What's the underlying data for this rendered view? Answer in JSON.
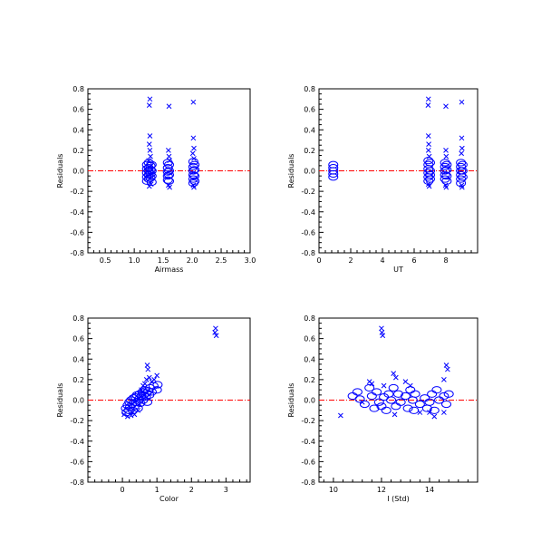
{
  "chart_data": [
    {
      "type": "scatter",
      "xlabel": "Airmass",
      "ylabel": "Residuals",
      "xlim": [
        0.2,
        3.0
      ],
      "ylim": [
        -0.8,
        0.8
      ],
      "xticks": [
        "0.5",
        "1.0",
        "1.5",
        "2.0",
        "2.5",
        "3.0"
      ],
      "xtick_values": [
        0.5,
        1.0,
        1.5,
        2.0,
        2.5,
        3.0
      ],
      "yticks": [
        "-0.8",
        "-0.6",
        "-0.4",
        "-0.2",
        "0.0",
        "0.2",
        "0.4",
        "0.6",
        "0.8"
      ],
      "ytick_values": [
        -0.8,
        -0.6,
        -0.4,
        -0.2,
        0.0,
        0.2,
        0.4,
        0.6,
        0.8
      ],
      "zero_line": {
        "y": 0,
        "color": "#ff0000",
        "style": "dash-dot"
      },
      "series": [
        {
          "marker": "circle",
          "color": "#0000ff",
          "points": [
            [
              1.22,
              0.06
            ],
            [
              1.22,
              0.02
            ],
            [
              1.22,
              -0.02
            ],
            [
              1.22,
              -0.06
            ],
            [
              1.22,
              -0.1
            ],
            [
              1.25,
              0.08
            ],
            [
              1.25,
              0.03
            ],
            [
              1.25,
              0.0
            ],
            [
              1.25,
              -0.04
            ],
            [
              1.25,
              -0.08
            ],
            [
              1.28,
              0.05
            ],
            [
              1.28,
              0.01
            ],
            [
              1.28,
              -0.03
            ],
            [
              1.28,
              -0.07
            ],
            [
              1.3,
              0.06
            ],
            [
              1.3,
              0.0
            ],
            [
              1.3,
              -0.05
            ],
            [
              1.3,
              -0.11
            ],
            [
              1.58,
              0.08
            ],
            [
              1.58,
              0.03
            ],
            [
              1.58,
              -0.01
            ],
            [
              1.58,
              -0.05
            ],
            [
              1.58,
              -0.09
            ],
            [
              1.6,
              0.06
            ],
            [
              1.6,
              0.0
            ],
            [
              1.6,
              -0.04
            ],
            [
              1.6,
              -0.1
            ],
            [
              2.02,
              0.09
            ],
            [
              2.02,
              0.04
            ],
            [
              2.02,
              0.0
            ],
            [
              2.02,
              -0.04
            ],
            [
              2.02,
              -0.08
            ],
            [
              2.02,
              -0.12
            ],
            [
              2.04,
              0.06
            ],
            [
              2.04,
              0.01
            ],
            [
              2.04,
              -0.05
            ],
            [
              2.04,
              -0.1
            ]
          ]
        },
        {
          "marker": "x",
          "color": "#0000ff",
          "points": [
            [
              1.27,
              0.7
            ],
            [
              1.26,
              0.64
            ],
            [
              1.27,
              0.34
            ],
            [
              1.26,
              0.26
            ],
            [
              1.27,
              0.2
            ],
            [
              1.28,
              0.14
            ],
            [
              1.25,
              0.1
            ],
            [
              1.29,
              -0.13
            ],
            [
              1.26,
              -0.15
            ],
            [
              1.6,
              0.63
            ],
            [
              1.59,
              0.2
            ],
            [
              1.6,
              0.14
            ],
            [
              1.61,
              0.1
            ],
            [
              1.59,
              -0.14
            ],
            [
              1.61,
              -0.16
            ],
            [
              2.02,
              0.67
            ],
            [
              2.02,
              0.32
            ],
            [
              2.03,
              0.22
            ],
            [
              2.01,
              0.17
            ],
            [
              2.03,
              0.12
            ],
            [
              2.02,
              -0.14
            ],
            [
              2.03,
              -0.16
            ]
          ]
        }
      ]
    },
    {
      "type": "scatter",
      "xlabel": "UT",
      "ylabel": "Residuals",
      "xlim": [
        0,
        10
      ],
      "ylim": [
        -0.8,
        0.8
      ],
      "xticks": [
        "0",
        "2",
        "4",
        "6",
        "8"
      ],
      "xtick_values": [
        0,
        2,
        4,
        6,
        8
      ],
      "yticks": [
        "-0.8",
        "-0.6",
        "-0.4",
        "-0.2",
        "0.0",
        "0.2",
        "0.4",
        "0.6",
        "0.8"
      ],
      "ytick_values": [
        -0.8,
        -0.6,
        -0.4,
        -0.2,
        0.0,
        0.2,
        0.4,
        0.6,
        0.8
      ],
      "zero_line": {
        "y": 0,
        "color": "#ff0000",
        "style": "dash-dot"
      },
      "series": [
        {
          "marker": "circle",
          "color": "#0000ff",
          "points": [
            [
              0.9,
              0.06
            ],
            [
              0.9,
              0.03
            ],
            [
              0.9,
              0.0
            ],
            [
              0.9,
              -0.03
            ],
            [
              0.9,
              -0.06
            ],
            [
              6.9,
              0.1
            ],
            [
              6.9,
              0.06
            ],
            [
              6.9,
              0.02
            ],
            [
              6.9,
              -0.02
            ],
            [
              6.9,
              -0.06
            ],
            [
              6.9,
              -0.1
            ],
            [
              7.0,
              0.08
            ],
            [
              7.0,
              0.0
            ],
            [
              7.0,
              -0.04
            ],
            [
              7.0,
              -0.08
            ],
            [
              7.95,
              0.08
            ],
            [
              7.95,
              0.04
            ],
            [
              7.95,
              0.0
            ],
            [
              7.95,
              -0.04
            ],
            [
              7.95,
              -0.08
            ],
            [
              8.05,
              0.06
            ],
            [
              8.05,
              0.01
            ],
            [
              8.05,
              -0.05
            ],
            [
              8.05,
              -0.1
            ],
            [
              8.95,
              0.08
            ],
            [
              8.95,
              0.04
            ],
            [
              8.95,
              0.0
            ],
            [
              8.95,
              -0.04
            ],
            [
              8.95,
              -0.08
            ],
            [
              8.95,
              -0.12
            ],
            [
              9.05,
              0.06
            ],
            [
              9.05,
              0.0
            ],
            [
              9.05,
              -0.06
            ]
          ]
        },
        {
          "marker": "x",
          "color": "#0000ff",
          "points": [
            [
              6.9,
              0.7
            ],
            [
              6.88,
              0.64
            ],
            [
              6.9,
              0.34
            ],
            [
              6.92,
              0.26
            ],
            [
              6.9,
              0.2
            ],
            [
              6.95,
              0.14
            ],
            [
              6.9,
              -0.13
            ],
            [
              6.95,
              -0.15
            ],
            [
              8.0,
              0.63
            ],
            [
              8.0,
              0.2
            ],
            [
              8.02,
              0.14
            ],
            [
              7.98,
              -0.14
            ],
            [
              8.02,
              -0.16
            ],
            [
              9.0,
              0.67
            ],
            [
              9.0,
              0.32
            ],
            [
              9.02,
              0.22
            ],
            [
              8.98,
              0.17
            ],
            [
              9.0,
              -0.14
            ],
            [
              9.02,
              -0.16
            ]
          ]
        }
      ]
    },
    {
      "type": "scatter",
      "xlabel": "Color",
      "ylabel": "Residuals",
      "xlim": [
        -1,
        3.7
      ],
      "ylim": [
        -0.8,
        0.8
      ],
      "xticks": [
        "0",
        "1",
        "2",
        "3"
      ],
      "xtick_values": [
        0,
        1,
        2,
        3
      ],
      "yticks": [
        "-0.8",
        "-0.6",
        "-0.4",
        "-0.2",
        "0.0",
        "0.2",
        "0.4",
        "0.6",
        "0.8"
      ],
      "ytick_values": [
        -0.8,
        -0.6,
        -0.4,
        -0.2,
        0.0,
        0.2,
        0.4,
        0.6,
        0.8
      ],
      "zero_line": {
        "y": 0,
        "color": "#ff0000",
        "style": "dash-dot"
      },
      "series": [
        {
          "marker": "circle",
          "color": "#0000ff",
          "points": [
            [
              0.1,
              -0.08
            ],
            [
              0.12,
              -0.12
            ],
            [
              0.15,
              -0.05
            ],
            [
              0.18,
              -0.1
            ],
            [
              0.2,
              -0.02
            ],
            [
              0.22,
              -0.07
            ],
            [
              0.25,
              0.0
            ],
            [
              0.28,
              -0.04
            ],
            [
              0.3,
              -0.1
            ],
            [
              0.32,
              0.02
            ],
            [
              0.35,
              -0.06
            ],
            [
              0.38,
              0.03
            ],
            [
              0.4,
              -0.02
            ],
            [
              0.42,
              0.05
            ],
            [
              0.45,
              -0.08
            ],
            [
              0.48,
              0.01
            ],
            [
              0.5,
              0.06
            ],
            [
              0.52,
              -0.03
            ],
            [
              0.55,
              0.04
            ],
            [
              0.58,
              0.08
            ],
            [
              0.6,
              0.0
            ],
            [
              0.62,
              0.05
            ],
            [
              0.65,
              0.1
            ],
            [
              0.68,
              0.03
            ],
            [
              0.7,
              0.07
            ],
            [
              0.72,
              -0.02
            ],
            [
              0.75,
              0.09
            ],
            [
              0.78,
              0.05
            ],
            [
              0.8,
              0.12
            ],
            [
              0.85,
              0.08
            ],
            [
              0.9,
              0.14
            ],
            [
              1.0,
              0.1
            ],
            [
              1.02,
              0.15
            ]
          ]
        },
        {
          "marker": "x",
          "color": "#0000ff",
          "points": [
            [
              0.05,
              -0.14
            ],
            [
              0.15,
              -0.16
            ],
            [
              0.25,
              -0.15
            ],
            [
              0.3,
              -0.12
            ],
            [
              0.35,
              -0.14
            ],
            [
              0.45,
              -0.1
            ],
            [
              0.5,
              -0.04
            ],
            [
              0.55,
              0.1
            ],
            [
              0.6,
              0.14
            ],
            [
              0.65,
              0.16
            ],
            [
              0.7,
              0.2
            ],
            [
              0.72,
              0.34
            ],
            [
              0.74,
              0.3
            ],
            [
              0.78,
              0.22
            ],
            [
              0.85,
              0.18
            ],
            [
              0.92,
              0.2
            ],
            [
              1.0,
              0.24
            ],
            [
              2.7,
              0.7
            ],
            [
              2.68,
              0.66
            ],
            [
              2.72,
              0.63
            ]
          ]
        }
      ]
    },
    {
      "type": "scatter",
      "xlabel": "I (Std)",
      "ylabel": "Residuals",
      "xlim": [
        9.4,
        16.0
      ],
      "ylim": [
        -0.8,
        0.8
      ],
      "xticks": [
        "10",
        "12",
        "14"
      ],
      "xtick_values": [
        10,
        12,
        14
      ],
      "yticks": [
        "-0.8",
        "-0.6",
        "-0.4",
        "-0.2",
        "0.0",
        "0.2",
        "0.4",
        "0.6",
        "0.8"
      ],
      "ytick_values": [
        -0.8,
        -0.6,
        -0.4,
        -0.2,
        0.0,
        0.2,
        0.4,
        0.6,
        0.8
      ],
      "zero_line": {
        "y": 0,
        "color": "#ff0000",
        "style": "dash-dot"
      },
      "series": [
        {
          "marker": "circle",
          "color": "#0000ff",
          "points": [
            [
              10.8,
              0.04
            ],
            [
              11.0,
              0.08
            ],
            [
              11.1,
              0.01
            ],
            [
              11.3,
              -0.04
            ],
            [
              11.5,
              0.12
            ],
            [
              11.6,
              0.04
            ],
            [
              11.7,
              -0.08
            ],
            [
              11.8,
              0.08
            ],
            [
              11.9,
              -0.02
            ],
            [
              12.0,
              -0.06
            ],
            [
              12.1,
              0.03
            ],
            [
              12.2,
              -0.1
            ],
            [
              12.3,
              0.06
            ],
            [
              12.4,
              0.0
            ],
            [
              12.5,
              0.12
            ],
            [
              12.6,
              -0.06
            ],
            [
              12.7,
              0.06
            ],
            [
              12.8,
              -0.02
            ],
            [
              13.0,
              0.04
            ],
            [
              13.1,
              -0.08
            ],
            [
              13.2,
              0.1
            ],
            [
              13.3,
              0.0
            ],
            [
              13.35,
              -0.1
            ],
            [
              13.4,
              0.06
            ],
            [
              13.6,
              -0.04
            ],
            [
              13.8,
              0.02
            ],
            [
              13.9,
              -0.08
            ],
            [
              14.0,
              -0.02
            ],
            [
              14.1,
              0.06
            ],
            [
              14.2,
              -0.1
            ],
            [
              14.3,
              0.1
            ],
            [
              14.4,
              0.0
            ],
            [
              14.6,
              0.04
            ],
            [
              14.7,
              -0.04
            ],
            [
              14.8,
              0.06
            ]
          ]
        },
        {
          "marker": "x",
          "color": "#0000ff",
          "points": [
            [
              10.3,
              -0.15
            ],
            [
              11.2,
              -0.02
            ],
            [
              11.5,
              0.18
            ],
            [
              11.6,
              0.16
            ],
            [
              12.0,
              0.7
            ],
            [
              12.02,
              0.66
            ],
            [
              12.05,
              0.63
            ],
            [
              12.1,
              0.14
            ],
            [
              12.5,
              0.26
            ],
            [
              12.6,
              0.22
            ],
            [
              12.55,
              -0.14
            ],
            [
              13.0,
              0.18
            ],
            [
              13.2,
              0.14
            ],
            [
              13.6,
              -0.12
            ],
            [
              14.0,
              -0.12
            ],
            [
              14.2,
              -0.16
            ],
            [
              14.6,
              0.2
            ],
            [
              14.7,
              0.34
            ],
            [
              14.75,
              0.3
            ],
            [
              14.6,
              -0.12
            ]
          ]
        }
      ]
    }
  ]
}
